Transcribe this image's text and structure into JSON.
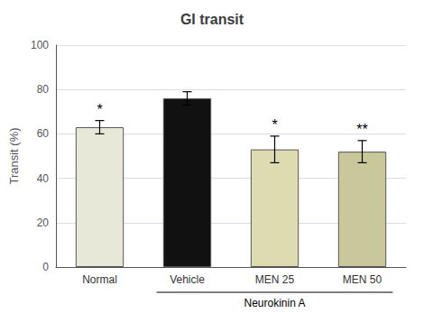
{
  "chart_data": {
    "type": "bar",
    "title": "GI transit",
    "categories": [
      "Normal",
      "Vehicle",
      "MEN 25",
      "MEN 50"
    ],
    "values": [
      63.0,
      76.0,
      53.0,
      52.0
    ],
    "errors": [
      3.0,
      3.0,
      6.0,
      5.0
    ],
    "colors": [
      "#e8e8d8",
      "#111111",
      "#dddcb0",
      "#c8c89a"
    ],
    "ylabel": "Transit (%)",
    "ylim": [
      0,
      100
    ],
    "yticks": [
      0,
      20,
      40,
      60,
      80,
      100
    ],
    "annotations": [
      "*",
      null,
      "*",
      "**"
    ],
    "group_labels": [
      {
        "label": "Neurokinin A",
        "from": "Vehicle",
        "to": "MEN 50"
      }
    ],
    "grid": true
  }
}
